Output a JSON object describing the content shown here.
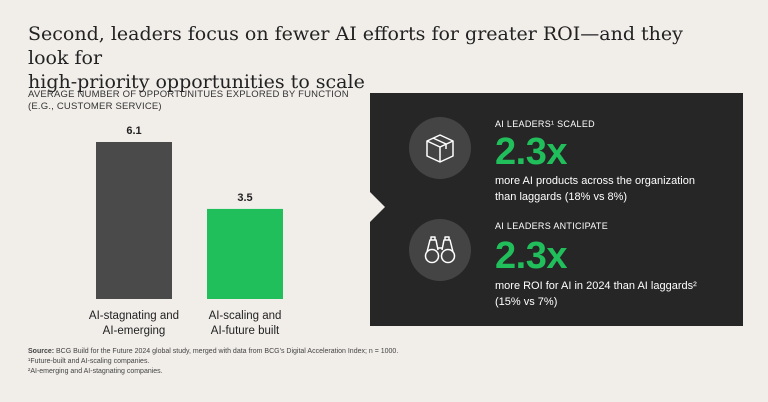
{
  "title_line1": "Second, leaders focus on fewer AI efforts for greater ROI—and they look for",
  "title_line2": "high-priority opportunities to scale",
  "chart_data": {
    "type": "bar",
    "title_line1": "AVERAGE NUMBER OF OPPORTUNITUES EXPLORED BY FUNCTION",
    "title_line2": "(E.G., CUSTOMER SERVICE)",
    "categories": [
      [
        "AI-stagnating and",
        "AI-emerging"
      ],
      [
        "AI-scaling and",
        "AI-future built"
      ]
    ],
    "values": [
      6.1,
      3.5
    ],
    "value_labels": [
      "6.1",
      "3.5"
    ],
    "colors": [
      "#4a4a4a",
      "#21bf5b"
    ],
    "ylim": [
      0,
      6.1
    ]
  },
  "panel": {
    "block1": {
      "label": "AI LEADERS¹ SCALED",
      "value": "2.3x",
      "desc_line1": "more AI products across the organization",
      "desc_line2": "than laggards (18% vs 8%)",
      "icon": "box-icon"
    },
    "block2": {
      "label": "AI LEADERS ANTICIPATE",
      "value": "2.3x",
      "desc_line1": "more ROI for AI in 2024 than AI laggards²",
      "desc_line2": "(15% vs 7%)",
      "icon": "binoculars-icon"
    }
  },
  "source": {
    "label": "Source:",
    "text": "BCG Build for the Future 2024 global study, merged with data from BCG's Digital Acceleration Index; n = 1000.",
    "note1": "¹Future-built and AI-scaling companies.",
    "note2": "²AI-emerging and AI-stagnating companies."
  }
}
